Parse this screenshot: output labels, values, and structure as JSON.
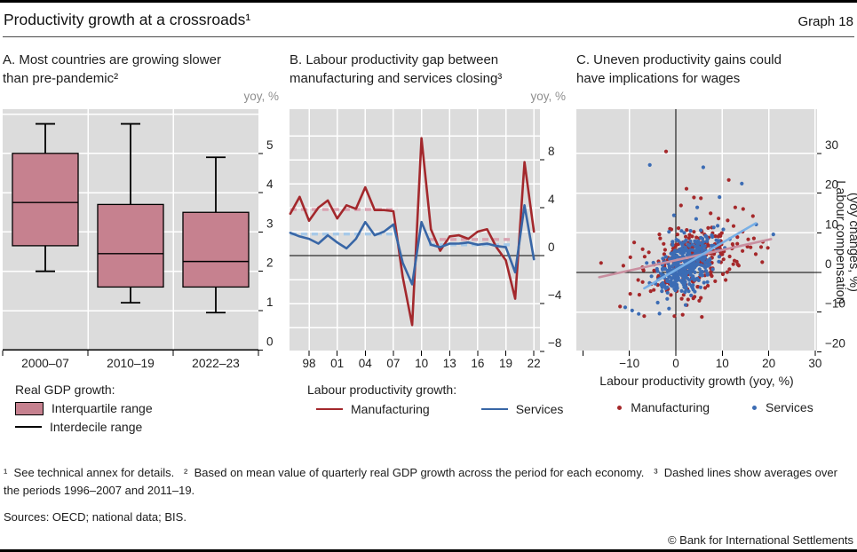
{
  "header": {
    "title": "Productivity growth at a crossroads¹",
    "graph_label": "Graph 18"
  },
  "chart_data": [
    {
      "type": "box",
      "panel": "A",
      "title_line1": "A. Most countries are growing slower",
      "title_line2": "than pre-pandemic²",
      "unit_label": "yoy, %",
      "categories": [
        "2000–07",
        "2010–19",
        "2022–23"
      ],
      "boxes": [
        {
          "low": 2.0,
          "q1": 2.65,
          "median": 3.75,
          "q3": 5.0,
          "high": 5.75
        },
        {
          "low": 1.2,
          "q1": 1.6,
          "median": 2.45,
          "q3": 3.7,
          "high": 5.75
        },
        {
          "low": 0.95,
          "q1": 1.6,
          "median": 2.25,
          "q3": 3.5,
          "high": 4.9
        }
      ],
      "ylim": [
        0,
        6.15
      ],
      "yticks": [
        5,
        4,
        3,
        2,
        1,
        0
      ],
      "legend_heading": "Real GDP growth:",
      "legend": [
        "Interquartile range",
        "Interdecile range"
      ]
    },
    {
      "type": "line",
      "panel": "B",
      "title_line1": "B. Labour productivity gap between",
      "title_line2": "manufacturing and services closing³",
      "unit_label": "yoy, %",
      "x": [
        1996,
        1997,
        1998,
        1999,
        2000,
        2001,
        2002,
        2003,
        2004,
        2005,
        2006,
        2007,
        2008,
        2009,
        2010,
        2011,
        2012,
        2013,
        2014,
        2015,
        2016,
        2017,
        2018,
        2019,
        2020,
        2021,
        2022
      ],
      "series": [
        {
          "name": "Manufacturing",
          "color": "#a3282c",
          "values": [
            3.5,
            4.9,
            2.9,
            4.0,
            4.6,
            3.1,
            4.2,
            3.9,
            5.7,
            3.8,
            3.8,
            3.7,
            -1.8,
            -5.8,
            9.8,
            2.2,
            0.4,
            1.6,
            1.7,
            1.4,
            2.0,
            2.2,
            0.7,
            -0.4,
            -3.6,
            7.8,
            2.0
          ]
        },
        {
          "name": "Services",
          "color": "#3866a6",
          "values": [
            1.9,
            1.6,
            1.4,
            1.0,
            1.7,
            1.1,
            0.6,
            1.4,
            2.8,
            1.7,
            2.0,
            2.6,
            -0.6,
            -2.4,
            2.8,
            0.9,
            0.7,
            1.0,
            1.0,
            1.1,
            0.9,
            1.0,
            0.8,
            0.7,
            -1.4,
            4.2,
            -0.3
          ]
        }
      ],
      "averages": [
        {
          "series": "Manufacturing",
          "period": "1996–2007",
          "value": 3.85,
          "x_start": 1996,
          "x_end": 2007.4,
          "color": "#d9a2b0"
        },
        {
          "series": "Services",
          "period": "1996–2007",
          "value": 1.8,
          "x_start": 1996,
          "x_end": 2007.4,
          "color": "#a6c9e8"
        },
        {
          "series": "Manufacturing",
          "period": "2011–19",
          "value": 1.35,
          "x_start": 2010.8,
          "x_end": 2019.6,
          "color": "#d9a2b0"
        },
        {
          "series": "Services",
          "period": "2011–19",
          "value": 0.9,
          "x_start": 2010.8,
          "x_end": 2019.6,
          "color": "#a6c9e8"
        }
      ],
      "ylim": [
        -8,
        12.2
      ],
      "yticks": [
        8,
        4,
        0,
        -4,
        -8
      ],
      "gridline_step": 2,
      "xticks": [
        1998,
        2001,
        2004,
        2007,
        2010,
        2013,
        2016,
        2019,
        2022
      ],
      "xtick_labels": [
        "98",
        "01",
        "04",
        "07",
        "10",
        "13",
        "16",
        "19",
        "22"
      ],
      "legend_heading": "Labour productivity growth:"
    },
    {
      "type": "scatter",
      "panel": "C",
      "title_line1": "C. Uneven productivity gains could",
      "title_line2": "have implications for wages",
      "xlabel": "Labour productivity growth (yoy, %)",
      "ylabel_lines": [
        "Labour compensation",
        "(yoy changes, %)"
      ],
      "xlim": [
        -20.3,
        30.4
      ],
      "ylim": [
        -19.7,
        41.2
      ],
      "xticks": [
        -20,
        -10,
        0,
        10,
        20,
        30
      ],
      "xtick_labels": [
        "",
        "−10",
        "0",
        "10",
        "20",
        "30"
      ],
      "yticks": [
        30,
        20,
        10,
        0,
        -10,
        -20
      ],
      "series": [
        {
          "name": "Manufacturing",
          "color": "#a5282a",
          "marker_radius": 2.1,
          "cluster": {
            "n": 280,
            "mean_x": 3.2,
            "mean_y": 2.8,
            "sd_x": 5.6,
            "sd_y": 4.6,
            "corr": 0.35,
            "seed": 20240107
          },
          "outlier_points": [
            [
              -2.1,
              30.5
            ],
            [
              11.4,
              23.3
            ],
            [
              2.3,
              21.1
            ],
            [
              3.9,
              18.9
            ],
            [
              5.4,
              18.7
            ],
            [
              1.1,
              16.9
            ],
            [
              12.8,
              16.4
            ],
            [
              14.5,
              16.0
            ],
            [
              16.6,
              14.2
            ],
            [
              7.5,
              14.9
            ],
            [
              9.2,
              13.6
            ],
            [
              -16.1,
              2.4
            ],
            [
              -11.3,
              1.7
            ],
            [
              -12.0,
              -8.6
            ],
            [
              -6.8,
              -11.0
            ],
            [
              5.6,
              -11.2
            ],
            [
              19.8,
              6.2
            ],
            [
              17.2,
              4.6
            ],
            [
              -9.8,
              -5.4
            ],
            [
              18.6,
              2.6
            ]
          ]
        },
        {
          "name": "Services",
          "color": "#3c6cb4",
          "marker_radius": 2.1,
          "cluster": {
            "n": 400,
            "mean_x": 1.9,
            "mean_y": 1.7,
            "sd_x": 3.4,
            "sd_y": 3.7,
            "corr": 0.5,
            "seed": 987654
          },
          "outlier_points": [
            [
              -5.6,
              27.1
            ],
            [
              5.9,
              26.5
            ],
            [
              14.2,
              22.4
            ],
            [
              9.4,
              19.0
            ],
            [
              4.6,
              16.4
            ],
            [
              -0.4,
              14.4
            ],
            [
              17.3,
              12.1
            ],
            [
              21.0,
              9.6
            ],
            [
              -10.9,
              -8.8
            ],
            [
              -9.4,
              -9.6
            ],
            [
              2.1,
              -8.2
            ],
            [
              -3.9,
              -7.6
            ]
          ]
        }
      ],
      "trend_lines": [
        {
          "series": "Manufacturing",
          "color": "#c98fa0",
          "from": [
            -16.5,
            -1.2
          ],
          "to": [
            20.5,
            8.4
          ]
        },
        {
          "series": "Services",
          "color": "#79b0e6",
          "from": [
            -6.8,
            -4.0
          ],
          "to": [
            17.2,
            12.4
          ]
        }
      ]
    }
  ],
  "footnotes": {
    "text": "¹  See technical annex for details.   ²  Based on mean value of quarterly real GDP growth across the period for each economy.   ³  Dashed lines show averages over the periods 1996–2007 and 2011–19."
  },
  "sources": "Sources: OECD; national data; BIS.",
  "copyright": "© Bank for International Settlements",
  "style": {
    "plot_background": "#dcdcdc",
    "gridline": "#ffffff",
    "axis_color": "#000000",
    "box_fill": "#c6818f",
    "unit_label_color": "#8f8f8f"
  }
}
